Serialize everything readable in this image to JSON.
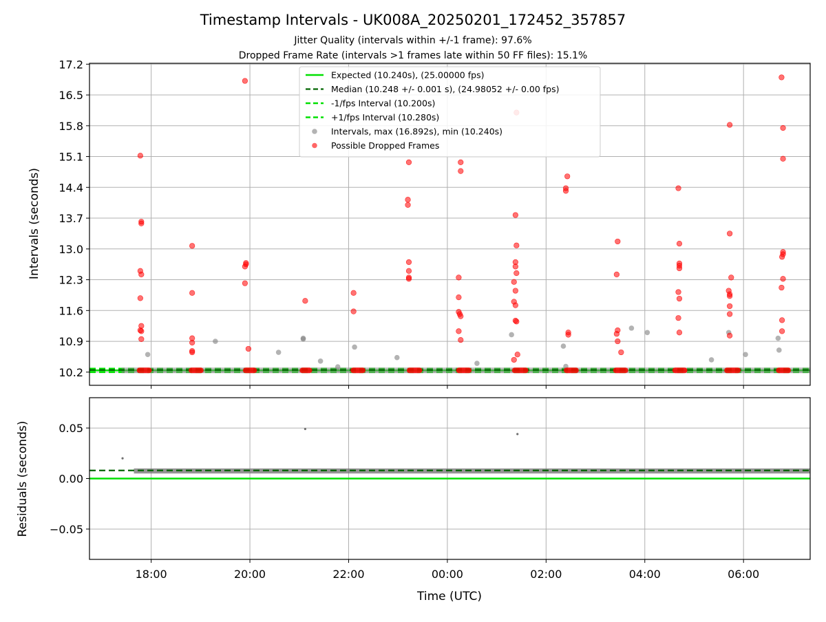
{
  "title": "Timestamp Intervals - UK008A_20250201_172452_357857",
  "subtitle_1": "Jitter Quality (intervals within +/-1 frame): 97.6%",
  "subtitle_2": "Dropped Frame Rate (intervals >1 frames late within 50 FF files): 15.1%",
  "colors": {
    "expected": "#00e000",
    "median": "#006400",
    "interval_band": "#00e000",
    "intervals": "#808080",
    "dropped": "#ff0000",
    "residuals": "#707070"
  },
  "chart_data": [
    {
      "type": "scatter",
      "xlabel": "",
      "ylabel": "Intervals (seconds)",
      "x_unit": "hours since 17:00 UTC (continuing past midnight)",
      "xlim": [
        16.75,
        31.35
      ],
      "ylim": [
        9.9,
        17.22
      ],
      "y_ticks": [
        "10.2",
        "10.9",
        "11.6",
        "12.3",
        "13.0",
        "13.7",
        "14.4",
        "15.1",
        "15.8",
        "16.5",
        "17.2"
      ],
      "x_ticks": [
        "18:00",
        "20:00",
        "22:00",
        "00:00",
        "02:00",
        "04:00",
        "06:00"
      ],
      "grid": true,
      "legend_position": "top-center",
      "legend": [
        {
          "label": "Expected (10.240s), (25.00000 fps)",
          "style": "solid-line"
        },
        {
          "label": "Median (10.248 +/- 0.001 s), (24.98052 +/- 0.00 fps)",
          "style": "dashed-dark"
        },
        {
          "label": "-1/fps Interval (10.200s)",
          "style": "dashed-light"
        },
        {
          "label": "+1/fps Interval (10.280s)",
          "style": "dashed-light"
        },
        {
          "label": "Intervals, max (16.892s), min (10.240s)",
          "style": "gray-dot"
        },
        {
          "label": "Possible Dropped Frames",
          "style": "red-dot"
        }
      ],
      "lines": {
        "expected": 10.24,
        "median": 10.248,
        "minus_1fps": 10.2,
        "plus_1fps": 10.28
      },
      "baseline_value": 10.24,
      "baseline_x_range": [
        17.4,
        31.35
      ],
      "dropped_clusters_at_baseline": [
        [
          17.75,
          17.97
        ],
        [
          18.8,
          19.02
        ],
        [
          19.9,
          20.1
        ],
        [
          21.05,
          21.22
        ],
        [
          22.08,
          22.3
        ],
        [
          23.22,
          23.45
        ],
        [
          24.22,
          24.45
        ],
        [
          25.35,
          25.6
        ],
        [
          26.4,
          26.62
        ],
        [
          27.4,
          27.62
        ],
        [
          28.6,
          28.82
        ],
        [
          29.65,
          29.9
        ],
        [
          30.7,
          30.92
        ]
      ],
      "gray_points": [
        [
          17.93,
          10.6
        ],
        [
          19.3,
          10.9
        ],
        [
          20.58,
          10.65
        ],
        [
          21.08,
          10.95
        ],
        [
          21.08,
          10.97
        ],
        [
          21.43,
          10.45
        ],
        [
          21.78,
          10.32
        ],
        [
          22.12,
          10.77
        ],
        [
          22.98,
          10.53
        ],
        [
          24.6,
          10.4
        ],
        [
          25.3,
          11.05
        ],
        [
          26.35,
          10.79
        ],
        [
          27.73,
          11.2
        ],
        [
          28.05,
          11.1
        ],
        [
          29.35,
          10.48
        ],
        [
          29.7,
          11.1
        ],
        [
          30.04,
          10.6
        ],
        [
          30.7,
          10.97
        ],
        [
          30.72,
          10.7
        ],
        [
          26.4,
          10.33
        ]
      ],
      "dropped_points": [
        [
          17.78,
          15.12
        ],
        [
          17.8,
          13.58
        ],
        [
          17.8,
          13.62
        ],
        [
          17.78,
          12.5
        ],
        [
          17.8,
          12.42
        ],
        [
          17.78,
          11.88
        ],
        [
          17.8,
          11.25
        ],
        [
          17.78,
          11.15
        ],
        [
          17.8,
          11.13
        ],
        [
          17.8,
          10.95
        ],
        [
          18.83,
          13.07
        ],
        [
          18.83,
          12.0
        ],
        [
          18.83,
          10.97
        ],
        [
          18.83,
          10.87
        ],
        [
          18.83,
          10.68
        ],
        [
          18.83,
          10.65
        ],
        [
          19.9,
          16.82
        ],
        [
          19.92,
          12.68
        ],
        [
          19.92,
          12.65
        ],
        [
          19.9,
          12.6
        ],
        [
          19.9,
          12.22
        ],
        [
          19.97,
          10.73
        ],
        [
          21.12,
          11.82
        ],
        [
          22.1,
          12.0
        ],
        [
          22.1,
          11.58
        ],
        [
          23.22,
          14.97
        ],
        [
          23.2,
          14.12
        ],
        [
          23.2,
          14.0
        ],
        [
          23.22,
          12.7
        ],
        [
          23.22,
          12.5
        ],
        [
          23.22,
          12.35
        ],
        [
          23.22,
          12.32
        ],
        [
          24.23,
          12.35
        ],
        [
          24.23,
          11.9
        ],
        [
          24.23,
          11.57
        ],
        [
          24.25,
          11.52
        ],
        [
          24.27,
          11.47
        ],
        [
          24.27,
          14.97
        ],
        [
          24.27,
          14.77
        ],
        [
          24.23,
          11.13
        ],
        [
          24.27,
          10.93
        ],
        [
          25.4,
          16.1
        ],
        [
          25.38,
          13.77
        ],
        [
          25.4,
          13.08
        ],
        [
          25.38,
          12.7
        ],
        [
          25.38,
          12.6
        ],
        [
          25.4,
          12.45
        ],
        [
          25.35,
          12.25
        ],
        [
          25.38,
          12.05
        ],
        [
          25.35,
          11.8
        ],
        [
          25.38,
          11.72
        ],
        [
          25.38,
          11.37
        ],
        [
          25.4,
          11.35
        ],
        [
          25.42,
          10.6
        ],
        [
          25.35,
          10.48
        ],
        [
          26.43,
          14.65
        ],
        [
          26.4,
          14.38
        ],
        [
          26.4,
          14.32
        ],
        [
          26.45,
          11.1
        ],
        [
          26.45,
          11.05
        ],
        [
          27.45,
          13.17
        ],
        [
          27.43,
          12.42
        ],
        [
          27.45,
          11.15
        ],
        [
          27.43,
          11.07
        ],
        [
          27.45,
          10.9
        ],
        [
          27.52,
          10.65
        ],
        [
          28.68,
          14.38
        ],
        [
          28.7,
          13.12
        ],
        [
          28.7,
          12.67
        ],
        [
          28.7,
          12.62
        ],
        [
          28.7,
          12.56
        ],
        [
          28.68,
          12.02
        ],
        [
          28.7,
          11.87
        ],
        [
          28.68,
          11.43
        ],
        [
          28.7,
          11.1
        ],
        [
          29.72,
          15.82
        ],
        [
          29.72,
          13.35
        ],
        [
          29.75,
          12.35
        ],
        [
          29.7,
          12.05
        ],
        [
          29.72,
          11.97
        ],
        [
          29.72,
          11.93
        ],
        [
          29.72,
          11.7
        ],
        [
          29.72,
          11.52
        ],
        [
          29.72,
          11.03
        ],
        [
          30.77,
          16.9
        ],
        [
          30.8,
          15.75
        ],
        [
          30.8,
          15.05
        ],
        [
          30.8,
          12.93
        ],
        [
          30.8,
          12.88
        ],
        [
          30.78,
          12.82
        ],
        [
          30.8,
          12.32
        ],
        [
          30.77,
          12.12
        ],
        [
          30.78,
          11.38
        ],
        [
          30.78,
          11.13
        ]
      ]
    },
    {
      "type": "scatter",
      "xlabel": "Time (UTC)",
      "ylabel": "Residuals (seconds)",
      "x_unit": "hours since 17:00 UTC (continuing past midnight)",
      "xlim": [
        16.75,
        31.35
      ],
      "ylim": [
        -0.08,
        0.08
      ],
      "y_ticks": [
        "0.05",
        "0.00",
        "−0.05"
      ],
      "y_tick_values": [
        0.05,
        0.0,
        -0.05
      ],
      "x_ticks": [
        "18:00",
        "20:00",
        "22:00",
        "00:00",
        "02:00",
        "04:00",
        "06:00"
      ],
      "grid": true,
      "zero_line": 0.0,
      "median_line": 0.008,
      "median_start_x": 16.75,
      "residual_band": {
        "x_range": [
          17.65,
          31.35
        ],
        "center": 0.0075,
        "half_width": 0.0025
      },
      "outliers": [
        [
          17.42,
          0.02
        ],
        [
          21.12,
          0.049
        ],
        [
          25.42,
          0.044
        ]
      ]
    }
  ]
}
